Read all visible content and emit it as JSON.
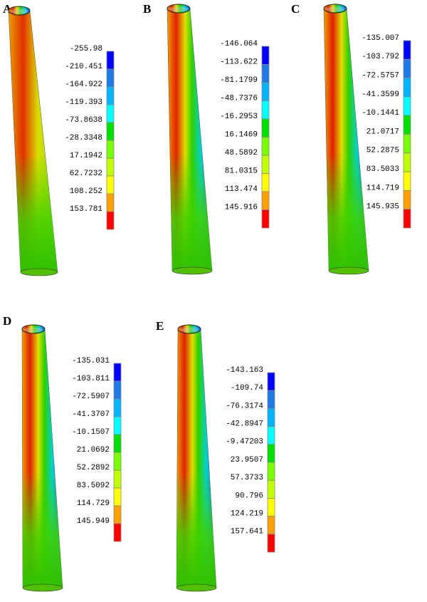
{
  "panels": [
    {
      "label": "A",
      "legend": [
        "-255.98",
        "-210.451",
        "-164.922",
        "-119.393",
        "-73.8638",
        "-28.3348",
        "17.1942",
        "62.7232",
        "108.252",
        "153.781"
      ]
    },
    {
      "label": "B",
      "legend": [
        "-146.064",
        "-113.622",
        "-81.1799",
        "-48.7376",
        "-16.2953",
        "16.1469",
        "48.5892",
        "81.0315",
        "113.474",
        "145.916"
      ]
    },
    {
      "label": "C",
      "legend": [
        "-135.007",
        "-103.792",
        "-72.5757",
        "-41.3599",
        "-10.1441",
        "21.0717",
        "52.2875",
        "83.5033",
        "114.719",
        "145.935"
      ]
    },
    {
      "label": "D",
      "legend": [
        "-135.031",
        "-103.811",
        "-72.5907",
        "-41.3707",
        "-10.1507",
        "21.0692",
        "52.2892",
        "83.5092",
        "114.729",
        "145.949"
      ]
    },
    {
      "label": "E",
      "legend": [
        "-143.163",
        "-109.74",
        "-76.3174",
        "-42.8947",
        "-9.47203",
        "23.9507",
        "57.3733",
        "90.796",
        "124.219",
        "157.641"
      ]
    }
  ]
}
